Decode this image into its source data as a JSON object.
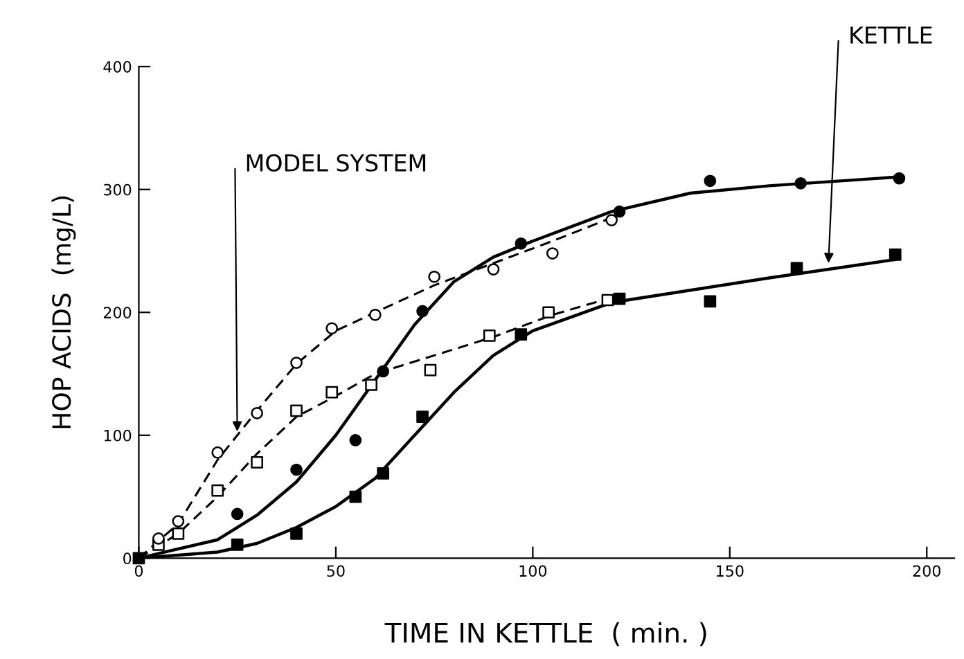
{
  "chart_data": {
    "type": "scatter",
    "xlabel": "TIME IN KETTLE  ( min. )",
    "ylabel": "HOP ACIDS  (mg/L)",
    "xlim": [
      0,
      207
    ],
    "ylim": [
      0,
      400
    ],
    "xticks": [
      0,
      50,
      100,
      150,
      200
    ],
    "yticks": [
      0,
      100,
      200,
      300,
      400
    ],
    "grid": false,
    "legend": false,
    "series": [
      {
        "marker": "circle",
        "color": "#ffffff",
        "x": [
          5,
          10,
          20,
          30,
          40,
          49,
          60,
          75,
          90,
          105,
          120
        ],
        "values": [
          16,
          30,
          86,
          118,
          159,
          187,
          198,
          229,
          235,
          248,
          275
        ]
      },
      {
        "marker": "square",
        "color": "#ffffff",
        "x": [
          5,
          10,
          20,
          30,
          40,
          49,
          59,
          74,
          89,
          104,
          119
        ],
        "values": [
          11,
          20,
          55,
          78,
          120,
          135,
          141,
          153,
          181,
          200,
          210
        ]
      },
      {
        "marker": "circle",
        "color": "#000000",
        "x": [
          25,
          40,
          55,
          62,
          72,
          97,
          122,
          145,
          168,
          193
        ],
        "values": [
          36,
          72,
          96,
          152,
          201,
          256,
          282,
          307,
          305,
          309
        ]
      },
      {
        "marker": "square",
        "color": "#000000",
        "x": [
          0,
          25,
          40,
          55,
          62,
          72,
          97,
          122,
          145,
          167,
          192
        ],
        "values": [
          0,
          11,
          20,
          50,
          69,
          115,
          182,
          211,
          209,
          236,
          247
        ]
      },
      {
        "type": "line",
        "line_style": "dashed",
        "color": "#000000",
        "x": [
          0,
          10,
          20,
          30,
          40,
          50,
          60,
          75,
          90,
          105,
          120
        ],
        "values": [
          0,
          28,
          80,
          120,
          158,
          185,
          200,
          222,
          240,
          258,
          277
        ]
      },
      {
        "type": "line",
        "line_style": "dashed",
        "color": "#000000",
        "x": [
          0,
          10,
          20,
          30,
          40,
          50,
          60,
          75,
          90,
          105,
          120
        ],
        "values": [
          0,
          20,
          50,
          85,
          115,
          132,
          150,
          165,
          180,
          198,
          212
        ]
      },
      {
        "type": "line",
        "line_style": "solid",
        "color": "#000000",
        "x": [
          0,
          20,
          30,
          40,
          50,
          60,
          70,
          80,
          90,
          100,
          120,
          140,
          160,
          192
        ],
        "values": [
          0,
          15,
          35,
          62,
          100,
          145,
          190,
          225,
          245,
          258,
          282,
          297,
          303,
          310
        ]
      },
      {
        "type": "line",
        "line_style": "solid",
        "color": "#000000",
        "x": [
          0,
          20,
          30,
          40,
          50,
          60,
          70,
          80,
          90,
          100,
          120,
          140,
          160,
          192
        ],
        "values": [
          0,
          5,
          12,
          25,
          42,
          65,
          100,
          135,
          165,
          185,
          208,
          218,
          228,
          243
        ]
      }
    ],
    "annotations": [
      {
        "text": "MODEL SYSTEM",
        "x": 25,
        "y": 100
      },
      {
        "text": "KETTLE",
        "x": 175,
        "y": 237
      }
    ]
  }
}
